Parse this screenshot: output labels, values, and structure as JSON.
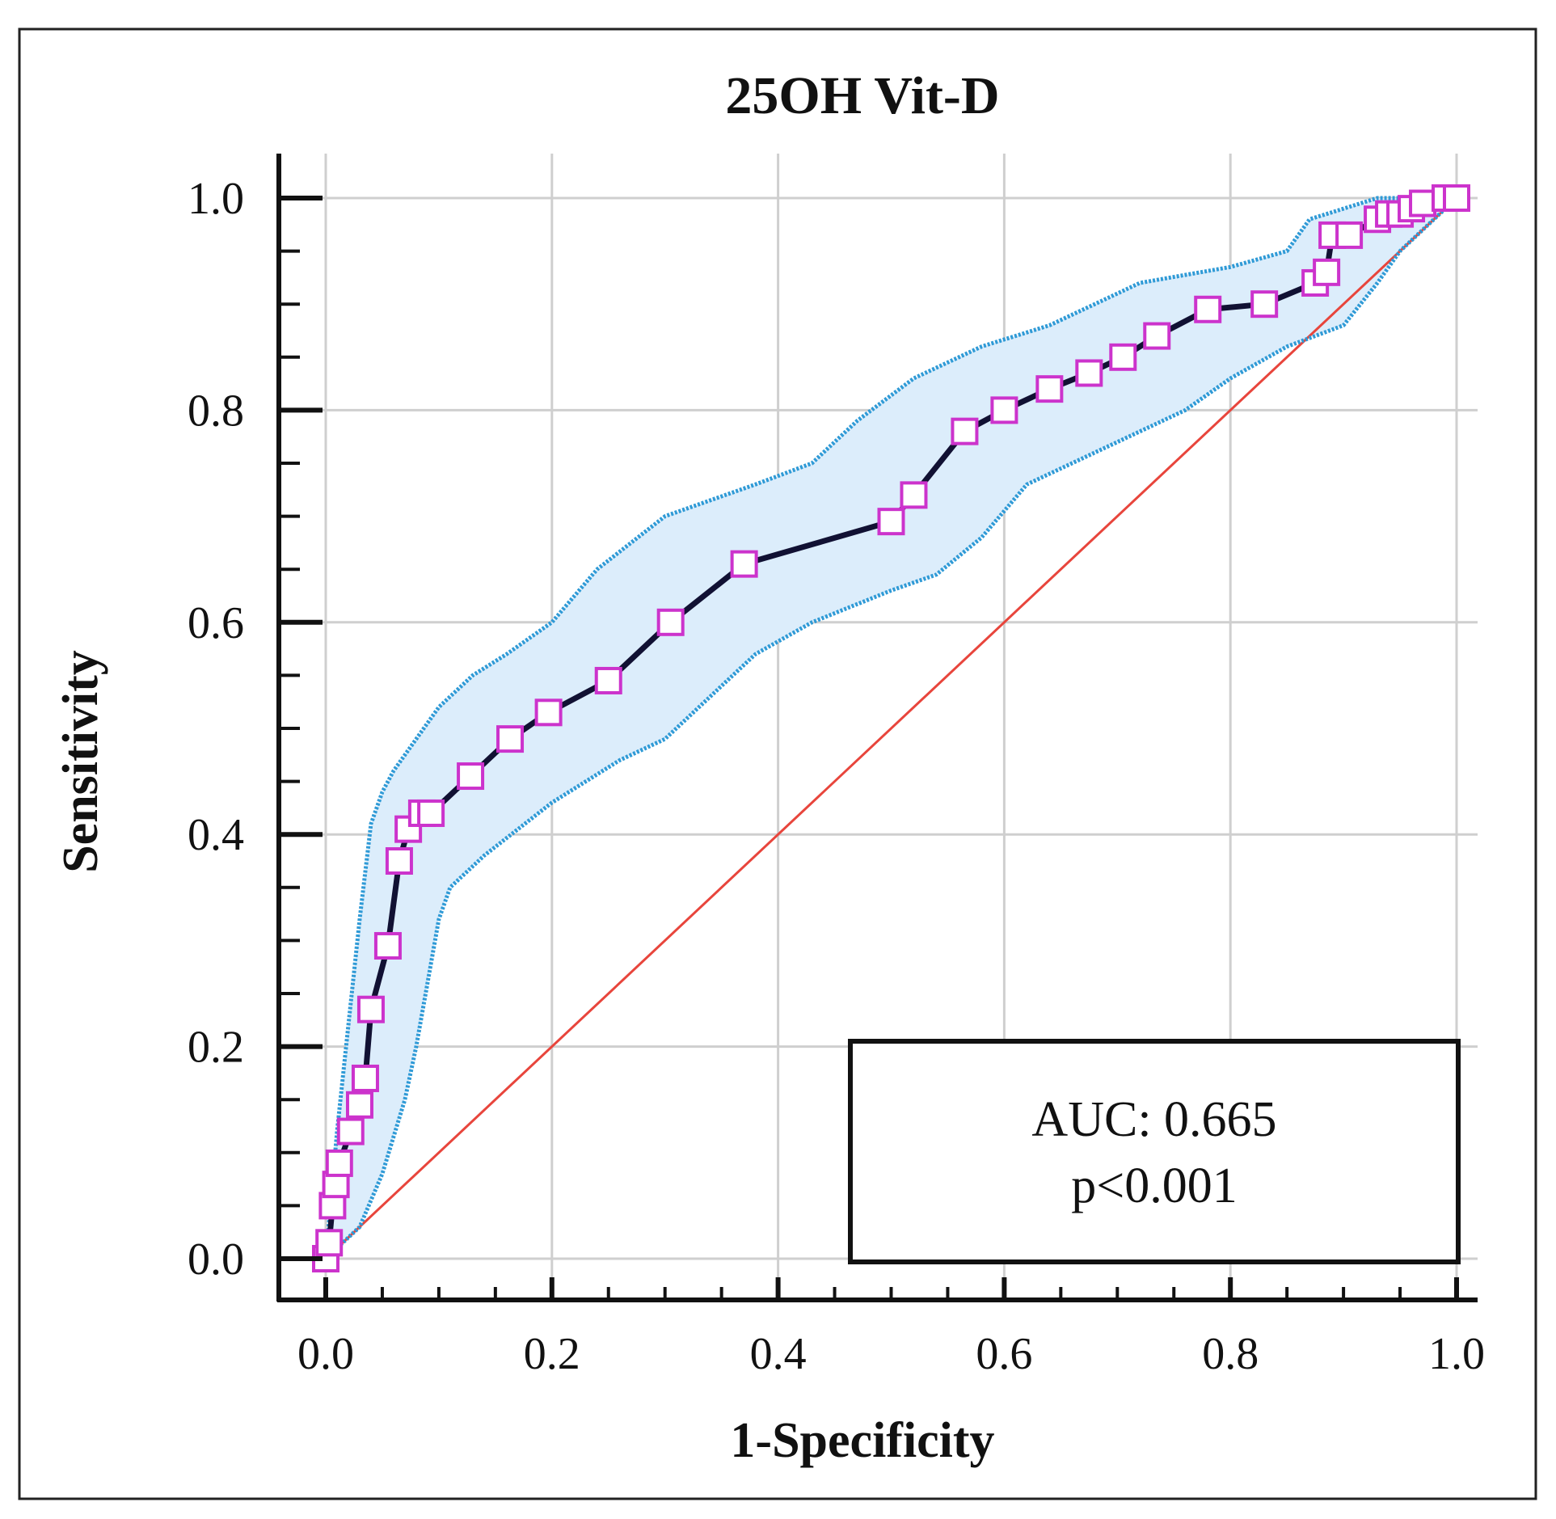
{
  "chart_data": {
    "type": "line",
    "title": "25OH Vit-D",
    "xlabel": "1-Specificity",
    "ylabel": "Sensitivity",
    "xlim": [
      0,
      1
    ],
    "ylim": [
      0,
      1
    ],
    "xticks": [
      "0.0",
      "0.2",
      "0.4",
      "0.6",
      "0.8",
      "1.0"
    ],
    "yticks": [
      "0.0",
      "0.2",
      "0.4",
      "0.6",
      "0.8",
      "1.0"
    ],
    "grid": true,
    "series": [
      {
        "name": "",
        "role": "roc_curve",
        "color": "#111133",
        "marker_color": "#cc33cc",
        "x": [
          0.0,
          0.003,
          0.006,
          0.009,
          0.012,
          0.022,
          0.03,
          0.035,
          0.04,
          0.055,
          0.065,
          0.073,
          0.085,
          0.093,
          0.128,
          0.163,
          0.197,
          0.25,
          0.305,
          0.37,
          0.5,
          0.52,
          0.565,
          0.6,
          0.64,
          0.675,
          0.705,
          0.735,
          0.78,
          0.83,
          0.875,
          0.885,
          0.89,
          0.905,
          0.93,
          0.94,
          0.95,
          0.96,
          0.97,
          0.99,
          1.0
        ],
        "y": [
          0.0,
          0.015,
          0.05,
          0.07,
          0.09,
          0.12,
          0.145,
          0.17,
          0.235,
          0.295,
          0.375,
          0.405,
          0.42,
          0.42,
          0.455,
          0.49,
          0.515,
          0.545,
          0.6,
          0.655,
          0.695,
          0.72,
          0.78,
          0.8,
          0.82,
          0.835,
          0.85,
          0.87,
          0.895,
          0.9,
          0.92,
          0.93,
          0.965,
          0.965,
          0.98,
          0.985,
          0.985,
          0.99,
          0.995,
          1.0,
          1.0
        ]
      },
      {
        "name": "",
        "role": "ci_upper",
        "color": "#2f9ad6",
        "x": [
          0.0,
          0.01,
          0.02,
          0.03,
          0.04,
          0.05,
          0.06,
          0.08,
          0.1,
          0.13,
          0.16,
          0.2,
          0.24,
          0.3,
          0.38,
          0.43,
          0.47,
          0.52,
          0.58,
          0.64,
          0.72,
          0.8,
          0.85,
          0.87,
          0.9,
          0.93,
          1.0
        ],
        "y": [
          0.0,
          0.12,
          0.22,
          0.32,
          0.41,
          0.44,
          0.46,
          0.49,
          0.52,
          0.55,
          0.57,
          0.6,
          0.65,
          0.7,
          0.73,
          0.75,
          0.79,
          0.83,
          0.86,
          0.88,
          0.92,
          0.935,
          0.95,
          0.98,
          0.99,
          1.0,
          1.0
        ]
      },
      {
        "name": "",
        "role": "ci_lower",
        "color": "#2f9ad6",
        "x": [
          0.0,
          0.03,
          0.05,
          0.07,
          0.08,
          0.09,
          0.1,
          0.11,
          0.14,
          0.2,
          0.26,
          0.3,
          0.34,
          0.38,
          0.43,
          0.5,
          0.54,
          0.58,
          0.62,
          0.7,
          0.76,
          0.8,
          0.85,
          0.9,
          0.93,
          0.95,
          0.97,
          1.0
        ],
        "y": [
          0.0,
          0.03,
          0.08,
          0.15,
          0.2,
          0.26,
          0.32,
          0.35,
          0.38,
          0.43,
          0.47,
          0.49,
          0.53,
          0.57,
          0.6,
          0.63,
          0.645,
          0.68,
          0.73,
          0.77,
          0.8,
          0.83,
          0.86,
          0.88,
          0.92,
          0.95,
          0.97,
          1.0
        ]
      },
      {
        "name": "",
        "role": "reference_diagonal",
        "color": "#e8453c",
        "x": [
          0,
          1
        ],
        "y": [
          0,
          1
        ]
      }
    ],
    "annotation": {
      "lines": [
        "AUC: 0.665",
        "p<0.001"
      ],
      "placement": "bottom-right"
    }
  }
}
